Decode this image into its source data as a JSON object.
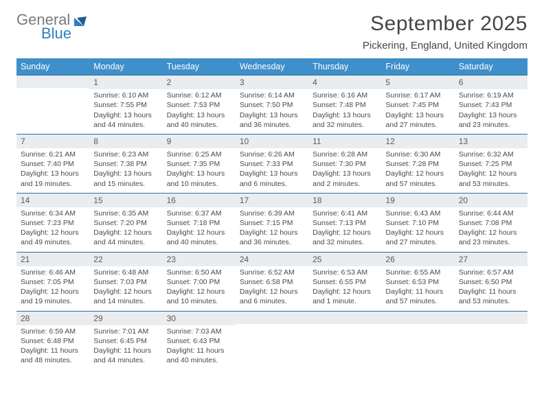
{
  "logo": {
    "line1": "General",
    "line2": "Blue"
  },
  "header": {
    "title": "September 2025",
    "subtitle": "Pickering, England, United Kingdom"
  },
  "colors": {
    "header_bg": "#3f8fca",
    "header_text": "#ffffff",
    "day_strip_bg": "#e9edf0",
    "day_strip_border": "#2f6d9e",
    "text": "#4a4a4a",
    "logo_gray": "#7a7a7a",
    "logo_blue": "#2f7ec0"
  },
  "weekdays": [
    "Sunday",
    "Monday",
    "Tuesday",
    "Wednesday",
    "Thursday",
    "Friday",
    "Saturday"
  ],
  "layout": {
    "start_offset": 1,
    "days_in_month": 30,
    "columns": 7,
    "rows": 5
  },
  "days": {
    "1": {
      "sunrise": "6:10 AM",
      "sunset": "7:55 PM",
      "daylight": "13 hours and 44 minutes."
    },
    "2": {
      "sunrise": "6:12 AM",
      "sunset": "7:53 PM",
      "daylight": "13 hours and 40 minutes."
    },
    "3": {
      "sunrise": "6:14 AM",
      "sunset": "7:50 PM",
      "daylight": "13 hours and 36 minutes."
    },
    "4": {
      "sunrise": "6:16 AM",
      "sunset": "7:48 PM",
      "daylight": "13 hours and 32 minutes."
    },
    "5": {
      "sunrise": "6:17 AM",
      "sunset": "7:45 PM",
      "daylight": "13 hours and 27 minutes."
    },
    "6": {
      "sunrise": "6:19 AM",
      "sunset": "7:43 PM",
      "daylight": "13 hours and 23 minutes."
    },
    "7": {
      "sunrise": "6:21 AM",
      "sunset": "7:40 PM",
      "daylight": "13 hours and 19 minutes."
    },
    "8": {
      "sunrise": "6:23 AM",
      "sunset": "7:38 PM",
      "daylight": "13 hours and 15 minutes."
    },
    "9": {
      "sunrise": "6:25 AM",
      "sunset": "7:35 PM",
      "daylight": "13 hours and 10 minutes."
    },
    "10": {
      "sunrise": "6:26 AM",
      "sunset": "7:33 PM",
      "daylight": "13 hours and 6 minutes."
    },
    "11": {
      "sunrise": "6:28 AM",
      "sunset": "7:30 PM",
      "daylight": "13 hours and 2 minutes."
    },
    "12": {
      "sunrise": "6:30 AM",
      "sunset": "7:28 PM",
      "daylight": "12 hours and 57 minutes."
    },
    "13": {
      "sunrise": "6:32 AM",
      "sunset": "7:25 PM",
      "daylight": "12 hours and 53 minutes."
    },
    "14": {
      "sunrise": "6:34 AM",
      "sunset": "7:23 PM",
      "daylight": "12 hours and 49 minutes."
    },
    "15": {
      "sunrise": "6:35 AM",
      "sunset": "7:20 PM",
      "daylight": "12 hours and 44 minutes."
    },
    "16": {
      "sunrise": "6:37 AM",
      "sunset": "7:18 PM",
      "daylight": "12 hours and 40 minutes."
    },
    "17": {
      "sunrise": "6:39 AM",
      "sunset": "7:15 PM",
      "daylight": "12 hours and 36 minutes."
    },
    "18": {
      "sunrise": "6:41 AM",
      "sunset": "7:13 PM",
      "daylight": "12 hours and 32 minutes."
    },
    "19": {
      "sunrise": "6:43 AM",
      "sunset": "7:10 PM",
      "daylight": "12 hours and 27 minutes."
    },
    "20": {
      "sunrise": "6:44 AM",
      "sunset": "7:08 PM",
      "daylight": "12 hours and 23 minutes."
    },
    "21": {
      "sunrise": "6:46 AM",
      "sunset": "7:05 PM",
      "daylight": "12 hours and 19 minutes."
    },
    "22": {
      "sunrise": "6:48 AM",
      "sunset": "7:03 PM",
      "daylight": "12 hours and 14 minutes."
    },
    "23": {
      "sunrise": "6:50 AM",
      "sunset": "7:00 PM",
      "daylight": "12 hours and 10 minutes."
    },
    "24": {
      "sunrise": "6:52 AM",
      "sunset": "6:58 PM",
      "daylight": "12 hours and 6 minutes."
    },
    "25": {
      "sunrise": "6:53 AM",
      "sunset": "6:55 PM",
      "daylight": "12 hours and 1 minute."
    },
    "26": {
      "sunrise": "6:55 AM",
      "sunset": "6:53 PM",
      "daylight": "11 hours and 57 minutes."
    },
    "27": {
      "sunrise": "6:57 AM",
      "sunset": "6:50 PM",
      "daylight": "11 hours and 53 minutes."
    },
    "28": {
      "sunrise": "6:59 AM",
      "sunset": "6:48 PM",
      "daylight": "11 hours and 48 minutes."
    },
    "29": {
      "sunrise": "7:01 AM",
      "sunset": "6:45 PM",
      "daylight": "11 hours and 44 minutes."
    },
    "30": {
      "sunrise": "7:03 AM",
      "sunset": "6:43 PM",
      "daylight": "11 hours and 40 minutes."
    }
  },
  "labels": {
    "sunrise_prefix": "Sunrise: ",
    "sunset_prefix": "Sunset: ",
    "daylight_prefix": "Daylight: "
  }
}
